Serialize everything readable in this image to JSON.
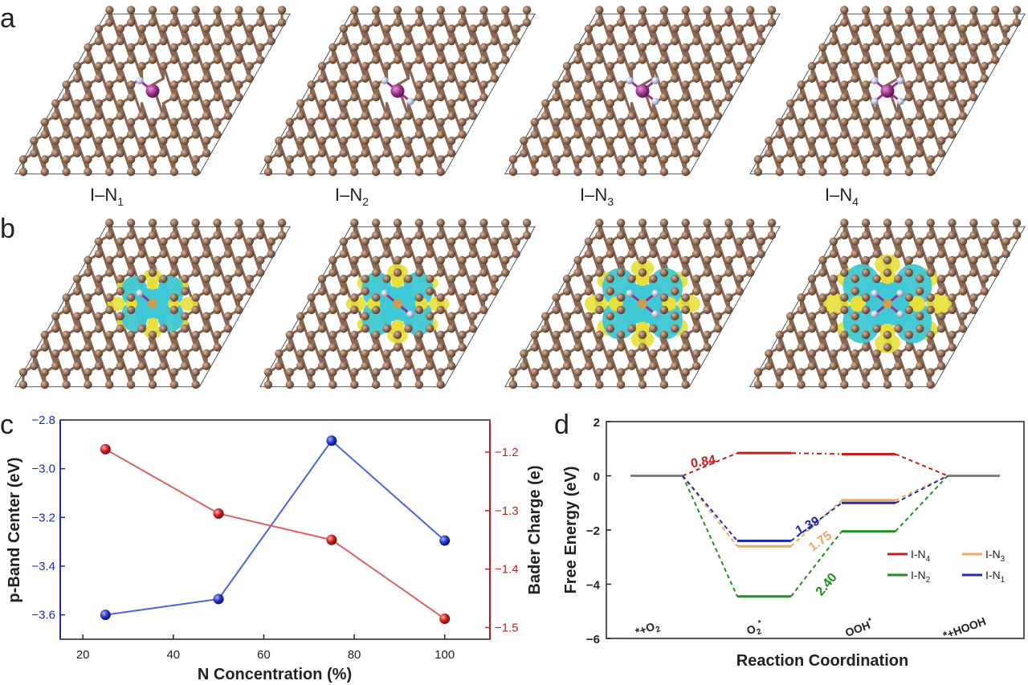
{
  "panels": {
    "a": "a",
    "b": "b",
    "c": "c",
    "d": "d"
  },
  "structures": [
    {
      "label_main": "I–N",
      "label_sub": "1",
      "n_count": 1
    },
    {
      "label_main": "I–N",
      "label_sub": "2",
      "n_count": 2
    },
    {
      "label_main": "I–N",
      "label_sub": "3",
      "n_count": 3
    },
    {
      "label_main": "I–N",
      "label_sub": "4",
      "n_count": 4
    }
  ],
  "colors": {
    "carbon": "#8a6650",
    "iodine": "#9a2f8a",
    "nitrogen": "#b9c2dc",
    "cyan_iso": "#3fc9d6",
    "yellow_iso": "#e7e03a",
    "blue": "#1f2fa8",
    "red": "#c41e1e",
    "orange": "#f0a860",
    "green": "#1f8f1f",
    "gray": "#808080"
  },
  "chart_data": [
    {
      "type": "line",
      "panel": "c",
      "xlabel": "N Concentration (%)",
      "ylabel": "p-Band Center (eV)",
      "y2label": "Bader Charge (e)",
      "xlim": [
        15,
        110
      ],
      "ylim": [
        -3.7,
        -2.8
      ],
      "y2lim": [
        -1.52,
        -1.145
      ],
      "xticks": [
        "20",
        "40",
        "60",
        "80",
        "100"
      ],
      "yticks": [
        "-2.8",
        "-3.0",
        "-3.2",
        "-3.4",
        "-3.6"
      ],
      "y2ticks": [
        "-1.2",
        "-1.3",
        "-1.4",
        "-1.5"
      ],
      "series": [
        {
          "axis": "left",
          "color": "#1f2fa8",
          "x": [
            25,
            50,
            75,
            100
          ],
          "values": [
            -3.6,
            -3.535,
            -2.885,
            -3.295
          ]
        },
        {
          "axis": "right",
          "color": "#c41e1e",
          "x": [
            25,
            50,
            75,
            100
          ],
          "values": [
            -1.195,
            -1.305,
            -1.35,
            -1.485
          ]
        }
      ]
    },
    {
      "type": "line",
      "panel": "d",
      "xlabel": "Reaction Coordination",
      "ylabel": "Free Energy (eV)",
      "ylim": [
        -6,
        2
      ],
      "yticks": [
        "2",
        "0",
        "-2",
        "-4",
        "-6"
      ],
      "categories": [
        "*+O2",
        "O2*",
        "OOH*",
        "*+HOOH"
      ],
      "category_labels": [
        {
          "pre": "*+O",
          "sub": "2",
          "sup": "",
          "post": ""
        },
        {
          "pre": "O",
          "sub": "2",
          "sup": "*",
          "post": ""
        },
        {
          "pre": "OOH",
          "sub": "",
          "sup": "*",
          "post": ""
        },
        {
          "pre": "*+HOOH",
          "sub": "",
          "sup": "",
          "post": ""
        }
      ],
      "series": [
        {
          "name_main": "I-N",
          "name_sub": "4",
          "color": "#c41e1e",
          "values": [
            0,
            0.84,
            0.8,
            0
          ]
        },
        {
          "name_main": "I-N",
          "name_sub": "3",
          "color": "#f0a860",
          "values": [
            0,
            -2.6,
            -0.9,
            0
          ]
        },
        {
          "name_main": "I-N",
          "name_sub": "2",
          "color": "#1f8f1f",
          "values": [
            0,
            -4.45,
            -2.05,
            0
          ]
        },
        {
          "name_main": "I-N",
          "name_sub": "1",
          "color": "#1f2fa8",
          "values": [
            0,
            -2.4,
            -1.0,
            0
          ]
        }
      ],
      "annotations": [
        {
          "text": "0.84",
          "color": "#c41e1e"
        },
        {
          "text": "1.39",
          "color": "#1f2fa8"
        },
        {
          "text": "1.75",
          "color": "#f0a860"
        },
        {
          "text": "2.40",
          "color": "#1f8f1f"
        }
      ]
    }
  ]
}
